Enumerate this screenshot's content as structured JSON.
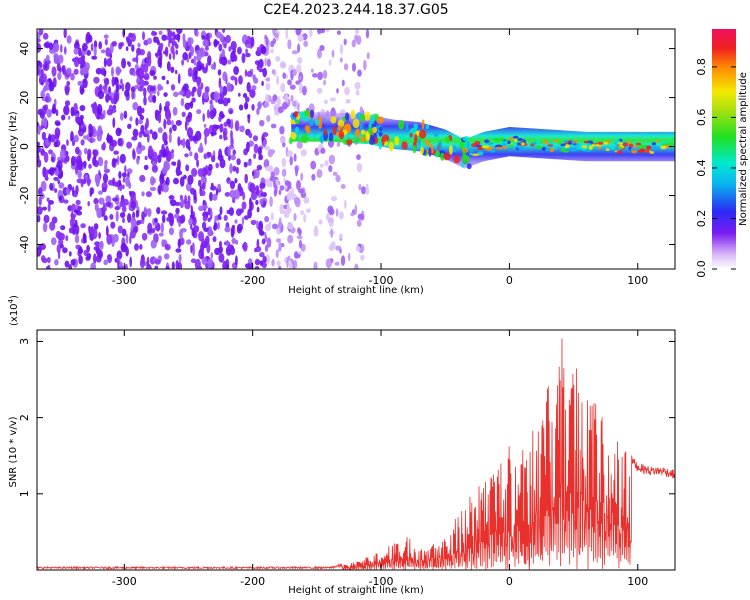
{
  "title": "C2E4.2023.244.18.37.G05",
  "colors": {
    "snr_line": "#e8302c",
    "scatter_noise": "#7a1cf2",
    "background": "#ffffff"
  },
  "chart_data": [
    {
      "type": "heatmap",
      "xlabel": "Height of straight line (km)",
      "ylabel": "Frequency (Hz)",
      "xlim": [
        -368,
        129
      ],
      "ylim": [
        -50,
        48
      ],
      "x_ticks": [
        -300,
        -200,
        -100,
        0,
        100
      ],
      "y_ticks": [
        -40,
        -20,
        0,
        20,
        40
      ],
      "colorbar": {
        "label": "Normalized spectral amplitude",
        "range": [
          0.0,
          0.95
        ],
        "ticks": [
          "0.0",
          "0.2",
          "0.4",
          "0.6",
          "0.8"
        ],
        "tick_values": [
          0.0,
          0.2,
          0.4,
          0.6,
          0.8
        ],
        "colormap": "rainbow (white-violet-blue-cyan-green-yellow-red-magenta)"
      },
      "signal_track": [
        {
          "x": -170,
          "freq": 8
        },
        {
          "x": -140,
          "freq": 8
        },
        {
          "x": -110,
          "freq": 7
        },
        {
          "x": -90,
          "freq": 5
        },
        {
          "x": -70,
          "freq": 4
        },
        {
          "x": -50,
          "freq": 1
        },
        {
          "x": -35,
          "freq": -3
        },
        {
          "x": -20,
          "freq": 0
        },
        {
          "x": 0,
          "freq": 2
        },
        {
          "x": 30,
          "freq": 1
        },
        {
          "x": 60,
          "freq": 0
        },
        {
          "x": 90,
          "freq": 0
        },
        {
          "x": 129,
          "freq": 0
        }
      ],
      "noise_region_x": [
        -368,
        -135
      ]
    },
    {
      "type": "line",
      "xlabel": "Height of straight line (km)",
      "ylabel": "SNR (10 * v/v)",
      "y_multiplier": "(x10^4)",
      "y_multiplier_base": "(x10",
      "y_multiplier_exp": "4",
      "xlim": [
        -368,
        129
      ],
      "ylim": [
        0,
        3.15
      ],
      "x_ticks": [
        -300,
        -200,
        -100,
        0,
        100
      ],
      "y_ticks": [
        1,
        2,
        3
      ],
      "series": [
        {
          "envelope_x": [
            -368,
            -140,
            -125,
            -110,
            -100,
            -90,
            -80,
            -70,
            -60,
            -50,
            -40,
            -30,
            -20,
            -10,
            0,
            10,
            20,
            30,
            40,
            50,
            60,
            70,
            80,
            90,
            95,
            100,
            110,
            120,
            129
          ],
          "envelope_y": [
            0.03,
            0.03,
            0.08,
            0.18,
            0.28,
            0.35,
            0.45,
            0.35,
            0.38,
            0.45,
            0.75,
            1.05,
            1.2,
            1.45,
            1.65,
            1.75,
            2.0,
            2.4,
            3.1,
            2.85,
            2.6,
            2.1,
            1.8,
            1.7,
            1.45,
            1.35,
            1.3,
            1.3,
            1.25
          ]
        }
      ]
    }
  ]
}
